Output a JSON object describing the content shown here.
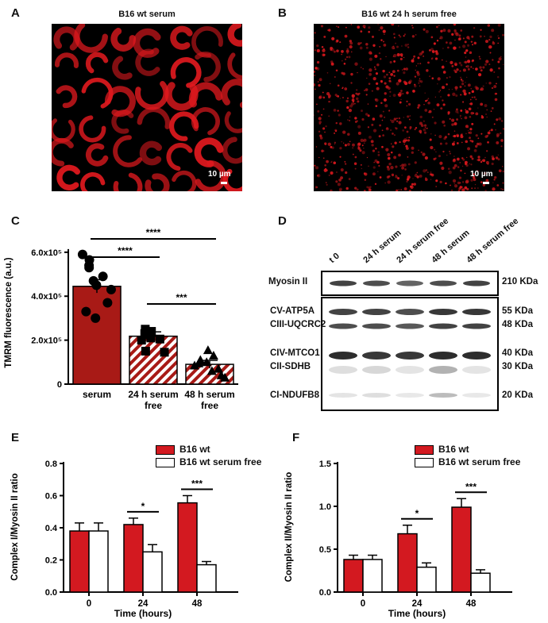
{
  "panels": {
    "A": {
      "label": "A",
      "title": "B16 wt serum",
      "scale": "10 µm"
    },
    "B": {
      "label": "B",
      "title": "B16 wt 24 h serum free",
      "scale": "10 µm"
    },
    "C": {
      "label": "C"
    },
    "D": {
      "label": "D"
    },
    "E": {
      "label": "E"
    },
    "F": {
      "label": "F"
    }
  },
  "colors": {
    "red": "#d31920",
    "darkred": "#a81a16",
    "cell": "#e0191e"
  },
  "chart_data": [
    {
      "type": "bar",
      "id": "C",
      "ylabel": "TMRM fluorescence (a.u.)",
      "yticks": [
        "0",
        "2.0x10⁵",
        "4.0x10⁵",
        "6.0x10⁵"
      ],
      "ylim": [
        0,
        650000
      ],
      "categories": [
        "serum",
        "24 h serum free",
        "48 h serum free"
      ],
      "category_lines": [
        [
          "serum"
        ],
        [
          "24 h serum",
          "free"
        ],
        [
          "48 h serum",
          "free"
        ]
      ],
      "values": [
        445000,
        218000,
        90000
      ],
      "errors": [
        30000,
        20000,
        18000
      ],
      "points": [
        [
          590000,
          565000,
          540000,
          530000,
          490000,
          470000,
          450000,
          430000,
          370000,
          330000,
          300000
        ],
        [
          250000,
          240000,
          230000,
          225000,
          210000,
          205000,
          200000,
          150000,
          145000
        ],
        [
          155000,
          130000,
          110000,
          100000,
          95000,
          85000,
          70000,
          60000,
          40000,
          30000
        ]
      ],
      "significance": [
        {
          "from": 0,
          "to": 1,
          "label": "****"
        },
        {
          "from": 0,
          "to": 2,
          "label": "****"
        },
        {
          "from": 1,
          "to": 2,
          "label": "***"
        }
      ]
    },
    {
      "type": "bar",
      "id": "E",
      "ylabel": "Complex I/Myosin II ratio",
      "xlabel": "Time (hours)",
      "categories": [
        "0",
        "24",
        "48"
      ],
      "yticks": [
        "0.0",
        "0.2",
        "0.4",
        "0.6",
        "0.8"
      ],
      "ylim": [
        0,
        0.8
      ],
      "legend_placement": "top-right",
      "series": [
        {
          "name": "B16 wt",
          "values": [
            0.38,
            0.42,
            0.555
          ],
          "errors": [
            0.05,
            0.04,
            0.045
          ]
        },
        {
          "name": "B16 wt serum free",
          "values": [
            0.38,
            0.25,
            0.17
          ],
          "errors": [
            0.05,
            0.045,
            0.02
          ]
        }
      ],
      "significance": [
        {
          "cat": 1,
          "label": "*"
        },
        {
          "cat": 2,
          "label": "***"
        }
      ]
    },
    {
      "type": "bar",
      "id": "F",
      "ylabel": "Complex II/Myosin II ratio",
      "xlabel": "Time (hours)",
      "categories": [
        "0",
        "24",
        "48"
      ],
      "yticks": [
        "0.0",
        "0.5",
        "1.0",
        "1.5"
      ],
      "ylim": [
        0,
        1.5
      ],
      "legend_placement": "top-right",
      "series": [
        {
          "name": "B16 wt",
          "values": [
            0.38,
            0.68,
            0.99
          ],
          "errors": [
            0.05,
            0.1,
            0.1
          ]
        },
        {
          "name": "B16 wt serum free",
          "values": [
            0.38,
            0.29,
            0.22
          ],
          "errors": [
            0.05,
            0.05,
            0.04
          ]
        }
      ],
      "significance": [
        {
          "cat": 1,
          "label": "*"
        },
        {
          "cat": 2,
          "label": "***"
        }
      ]
    }
  ],
  "blot": {
    "lanes": [
      "t 0",
      "24 h serum",
      "24 h serum free",
      "48 h serum",
      "48 h serum free"
    ],
    "top": {
      "label": "Myosin II",
      "kda": "210 KDa"
    },
    "bands": [
      {
        "label": "CV-ATP5A",
        "kda": "55 KDa"
      },
      {
        "label": "CIII-UQCRC2",
        "kda": "48 KDa"
      },
      {
        "label": "CIV-MTCO1",
        "kda": "40 KDa"
      },
      {
        "label": "CII-SDHB",
        "kda": "30 KDa"
      },
      {
        "label": "CI-NDUFB8",
        "kda": "20 KDa"
      }
    ]
  }
}
